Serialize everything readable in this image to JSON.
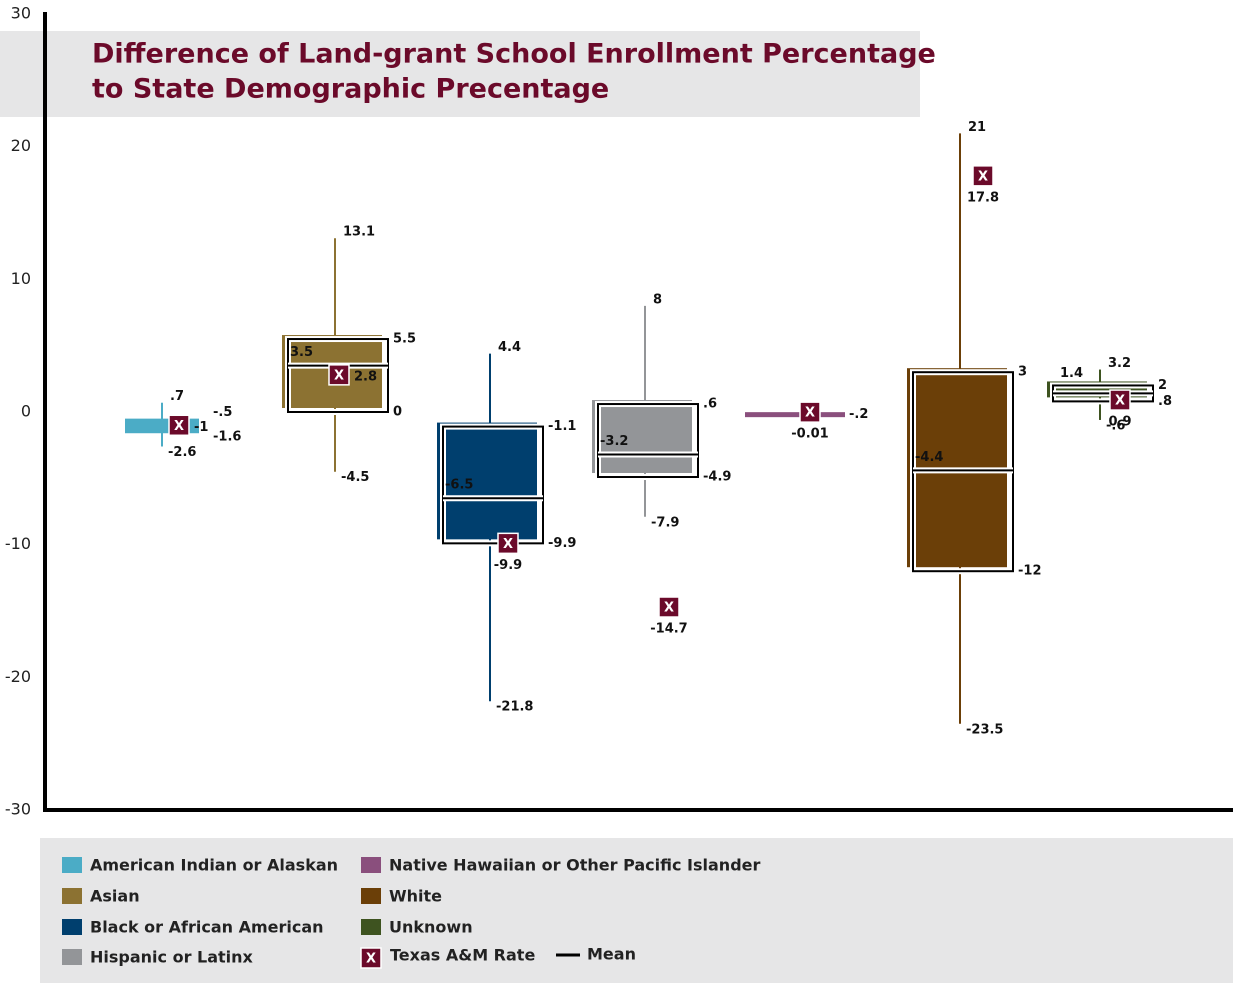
{
  "chart_data": {
    "type": "box",
    "title": [
      "Difference of Land-grant School Enrollment Percentage",
      "to State Demographic Precentage"
    ],
    "ylim": [
      -30,
      30
    ],
    "yticks": [
      -30,
      -20,
      -10,
      0,
      10,
      20,
      30
    ],
    "tamu_marker": "X",
    "tamu_name": "Texas A&M Rate",
    "mean_name": "Mean",
    "tamu_color": "#6b0a2a",
    "series": [
      {
        "name": "American Indian or Alaskan",
        "color": "#4bacc6",
        "max": 0.7,
        "q3": -0.5,
        "q1": -1.6,
        "min": -2.6,
        "tamu": -1,
        "value_labels": {
          "max": ".7",
          "q3": "-.5",
          "q1": "-1.6",
          "min": "-2.6",
          "tamu": "-1"
        }
      },
      {
        "name": "Asian",
        "color": "#8c7232",
        "max": 13.1,
        "q3": 5.5,
        "q1": 0,
        "min": -4.5,
        "mean": 3.5,
        "tamu": 2.8
      },
      {
        "name": "Black or African American",
        "color": "#003f6e",
        "max": 4.4,
        "q3": -1.1,
        "q1": -9.9,
        "min": -21.8,
        "mean": -6.5,
        "tamu": -9.9
      },
      {
        "name": "Hispanic or Latinx",
        "color": "#939598",
        "max": 8,
        "q3": 0.6,
        "q1": -4.9,
        "min": -7.9,
        "mean": -3.2,
        "tamu": -14.7,
        "value_labels": {
          "q3": ".6"
        }
      },
      {
        "name": "Native Hawaiian or Other Pacific Islander",
        "color": "#8a4f7d",
        "q3": -0.2,
        "tamu": -0.01,
        "value_labels": {
          "q3": "-.2"
        }
      },
      {
        "name": "White",
        "color": "#6b3f08",
        "max": 21,
        "q3": 3,
        "q1": -12,
        "min": -23.5,
        "mean": -4.4,
        "tamu": 17.8
      },
      {
        "name": "Unknown",
        "color": "#3e5320",
        "max": 3.2,
        "q3": 2,
        "q1": 0.8,
        "min": -0.6,
        "mean": 1.4,
        "tamu": 0.9,
        "value_labels": {
          "q1": ".8",
          "min": "-.6"
        }
      }
    ]
  }
}
